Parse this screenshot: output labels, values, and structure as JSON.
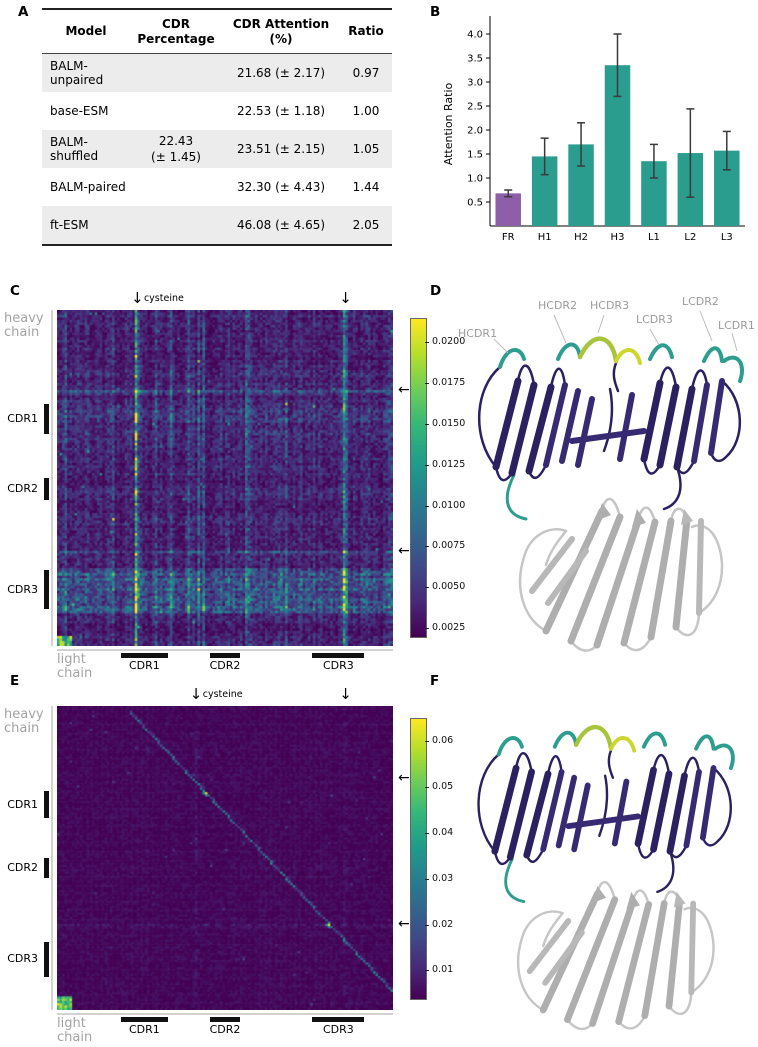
{
  "panelA": {
    "label": "A",
    "table": {
      "headers": [
        "Model",
        "CDR Percentage",
        "CDR Attention (%)",
        "Ratio"
      ],
      "shared_cdr_percentage": {
        "line1": "22.43",
        "line2": "(± 1.45)"
      },
      "rows": [
        {
          "model": "BALM-unpaired",
          "cdr_attention": "21.68 (± 2.17)",
          "ratio": "0.97"
        },
        {
          "model": "base-ESM",
          "cdr_attention": "22.53 (± 1.18)",
          "ratio": "1.00"
        },
        {
          "model": "BALM-shuffled",
          "cdr_attention": "23.51 (± 2.15)",
          "ratio": "1.05"
        },
        {
          "model": "BALM-paired",
          "cdr_attention": "32.30 (± 4.43)",
          "ratio": "1.44"
        },
        {
          "model": "ft-ESM",
          "cdr_attention": "46.08 (± 4.65)",
          "ratio": "2.05"
        }
      ]
    }
  },
  "panelB": {
    "label": "B"
  },
  "panelC": {
    "label": "C",
    "y_axis_label": "heavy chain",
    "x_axis_label": "light chain",
    "y_cdr_labels": [
      "CDR1",
      "CDR2",
      "CDR3"
    ],
    "x_cdr_labels": [
      "CDR1",
      "CDR2",
      "CDR3"
    ],
    "cysteine_label": "cysteine"
  },
  "panelD": {
    "label": "D",
    "labels": [
      "HCDR1",
      "HCDR2",
      "HCDR3",
      "LCDR3",
      "LCDR2",
      "LCDR1"
    ]
  },
  "panelE": {
    "label": "E",
    "y_axis_label": "heavy chain",
    "x_axis_label": "light chain",
    "y_cdr_labels": [
      "CDR1",
      "CDR2",
      "CDR3"
    ],
    "x_cdr_labels": [
      "CDR1",
      "CDR2",
      "CDR3"
    ],
    "cysteine_label": "cysteine"
  },
  "panelF": {
    "label": "F"
  },
  "colors": {
    "bar_teal": "#2a9d8f",
    "bar_purple": "#8d5fa9",
    "heatmap_colormap": "viridis"
  },
  "chart_data": [
    {
      "panel": "B",
      "type": "bar",
      "title": "",
      "categories": [
        "FR",
        "H1",
        "H2",
        "H3",
        "L1",
        "L2",
        "L3"
      ],
      "values": [
        0.68,
        1.45,
        1.7,
        3.35,
        1.35,
        1.52,
        1.57
      ],
      "errors": [
        0.07,
        0.38,
        0.45,
        0.65,
        0.35,
        0.92,
        0.4
      ],
      "xlabel": "",
      "ylabel": "Attention Ratio",
      "ylim": [
        0,
        4.25
      ],
      "yticks": [
        0.5,
        1.0,
        1.5,
        2.0,
        2.5,
        3.0,
        3.5,
        4.0
      ],
      "grid": false,
      "legend": "none",
      "bar_colors": [
        "#8d5fa9",
        "#2a9d8f",
        "#2a9d8f",
        "#2a9d8f",
        "#2a9d8f",
        "#2a9d8f",
        "#2a9d8f"
      ]
    },
    {
      "panel": "C",
      "type": "heatmap",
      "colormap": "viridis",
      "grid": 134,
      "rows_label": "heavy chain",
      "cols_label": "light chain",
      "vmin": 0.002,
      "vmax": 0.0215,
      "colorbar_ticks": [
        0.02,
        0.0175,
        0.015,
        0.0125,
        0.01,
        0.0075,
        0.005,
        0.0025
      ],
      "colorbar_tick_labels": [
        "0.0200",
        "0.0175",
        "0.0150",
        "0.0125",
        "0.0100",
        "0.0075",
        "0.0050",
        "0.0025"
      ],
      "row_cdr_bands": [
        [
          0.28,
          0.37
        ],
        [
          0.5,
          0.565
        ],
        [
          0.775,
          0.89
        ]
      ],
      "col_cdr_bands": [
        [
          0.19,
          0.33
        ],
        [
          0.455,
          0.545
        ],
        [
          0.76,
          0.915
        ]
      ],
      "annotations": {
        "arrow_cols": [
          0.235,
          0.855
        ],
        "marked_rows": [
          0.24,
          0.72
        ],
        "cysteine_label": "cysteine"
      },
      "features": {
        "base": 0.0034,
        "col_noise": [
          0.78,
          0.55
        ],
        "row_noise": [
          0.85,
          0.35
        ],
        "random_bright_cols": 14,
        "bright_cols": [
          0.235,
          0.855
        ],
        "bright_col_gain": 3.0,
        "marked_rows": [
          0.24,
          0.72
        ],
        "marked_row_gain": 1.6,
        "row_bands": [
          {
            "range": [
              0.775,
              0.9
            ],
            "gain": 1.8
          },
          {
            "range": [
              0.28,
              0.37
            ],
            "gain": 1.2
          }
        ],
        "corner": {
          "row_frac": 0.965,
          "col_frac": 0.04,
          "lo": 0.45,
          "hi": 1.0
        },
        "diagonal": null
      }
    },
    {
      "panel": "E",
      "type": "heatmap",
      "colormap": "viridis",
      "grid": 134,
      "rows_label": "heavy chain",
      "cols_label": "light chain",
      "vmin": 0.004,
      "vmax": 0.065,
      "colorbar_ticks": [
        0.06,
        0.05,
        0.04,
        0.03,
        0.02,
        0.01
      ],
      "colorbar_tick_labels": [
        "0.06",
        "0.05",
        "0.04",
        "0.03",
        "0.02",
        "0.01"
      ],
      "row_cdr_bands": [
        [
          0.28,
          0.37
        ],
        [
          0.5,
          0.565
        ],
        [
          0.775,
          0.89
        ]
      ],
      "col_cdr_bands": [
        [
          0.19,
          0.33
        ],
        [
          0.455,
          0.545
        ],
        [
          0.76,
          0.915
        ]
      ],
      "annotations": {
        "arrow_cols": [
          0.41,
          0.855
        ],
        "marked_rows": [
          0.24,
          0.72
        ],
        "cysteine_label": "cysteine"
      },
      "features": {
        "base": 0.0047,
        "col_noise": [
          0.93,
          0.14
        ],
        "row_noise": [
          0.94,
          0.12
        ],
        "random_bright_cols": 0,
        "bright_cols": [
          0.41,
          0.855
        ],
        "bright_col_gain": 1.35,
        "marked_rows": [
          0.72
        ],
        "marked_row_gain": 1.5,
        "row_bands": [],
        "corner": {
          "row_frac": 0.955,
          "col_frac": 0.04,
          "lo": 0.55,
          "hi": 1.0
        },
        "diagonal": {
          "start": 0.2,
          "slope": 0.85
        },
        "diag_hotspots": [
          0.28,
          0.715
        ]
      }
    }
  ]
}
